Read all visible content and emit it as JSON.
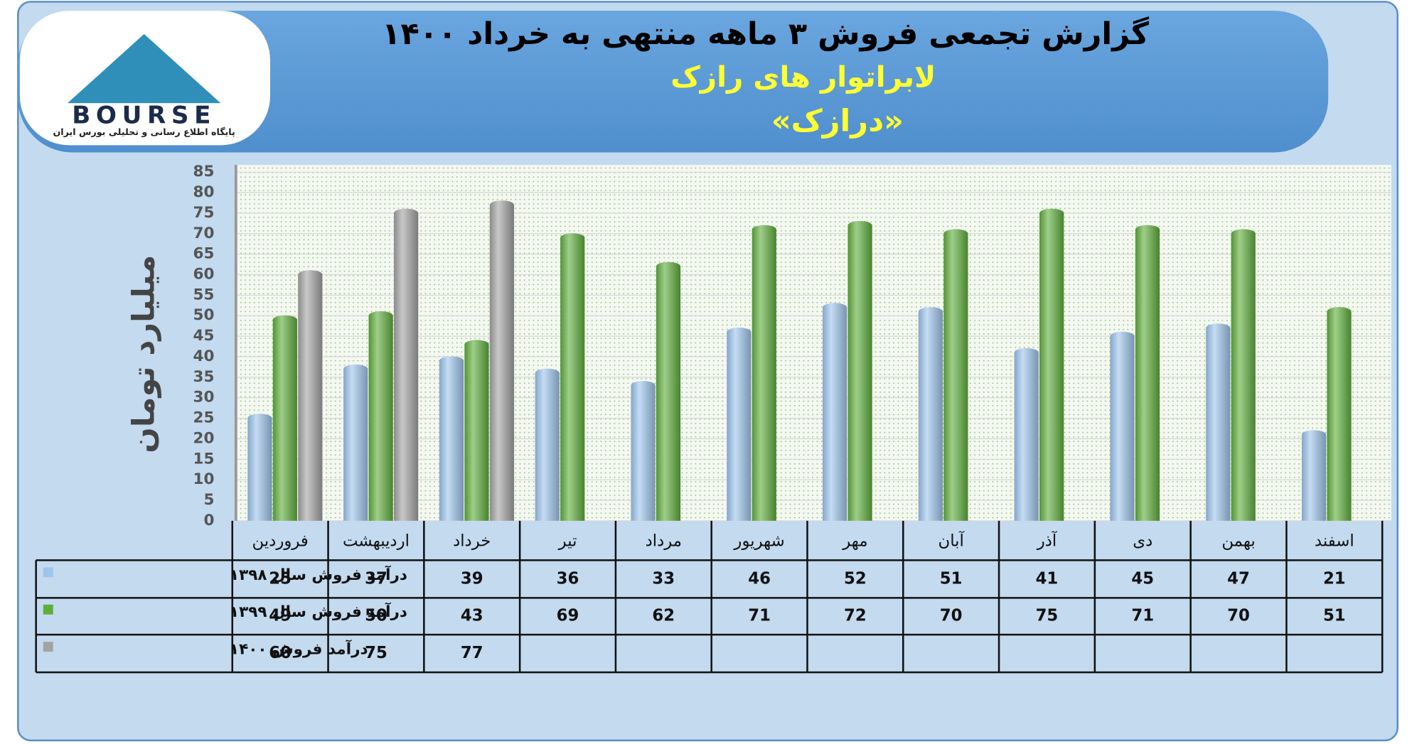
{
  "logo": {
    "text": "BOURSE",
    "tagline": "پایگاه اطلاع رسانی و تحلیلی بورس ایران"
  },
  "chart_data": {
    "type": "bar",
    "title": "گزارش تجمعی فروش ۳ ماهه منتهی به خرداد ۱۴۰۰",
    "subtitle": "لابراتوار های رازک",
    "ticker": "«درازک»",
    "y_label": "میلیارد تومان",
    "categories": [
      "فروردین",
      "اردیبهشت",
      "خرداد",
      "تیر",
      "مرداد",
      "شهریور",
      "مهر",
      "آبان",
      "آذر",
      "دی",
      "بهمن",
      "اسفند"
    ],
    "series": [
      {
        "name": "درآمد فروش سال ۱۳۹۸",
        "color": "#9ec5ec",
        "values": [
          25,
          37,
          39,
          36,
          33,
          46,
          52,
          51,
          41,
          45,
          47,
          21
        ]
      },
      {
        "name": "درآمد فروش سال ۱۳۹۹",
        "color": "#5fae3c",
        "values": [
          49,
          50,
          43,
          69,
          62,
          71,
          72,
          70,
          75,
          71,
          70,
          51
        ]
      },
      {
        "name": "درآمد فروش ۱۴۰۰",
        "color": "#a3a3a3",
        "values": [
          60,
          75,
          77,
          null,
          null,
          null,
          null,
          null,
          null,
          null,
          null,
          null
        ]
      }
    ],
    "ylim": [
      0,
      85
    ],
    "yticks": [
      0,
      5,
      10,
      15,
      20,
      25,
      30,
      35,
      40,
      45,
      50,
      55,
      60,
      65,
      70,
      75,
      80,
      85
    ],
    "grid": true
  }
}
